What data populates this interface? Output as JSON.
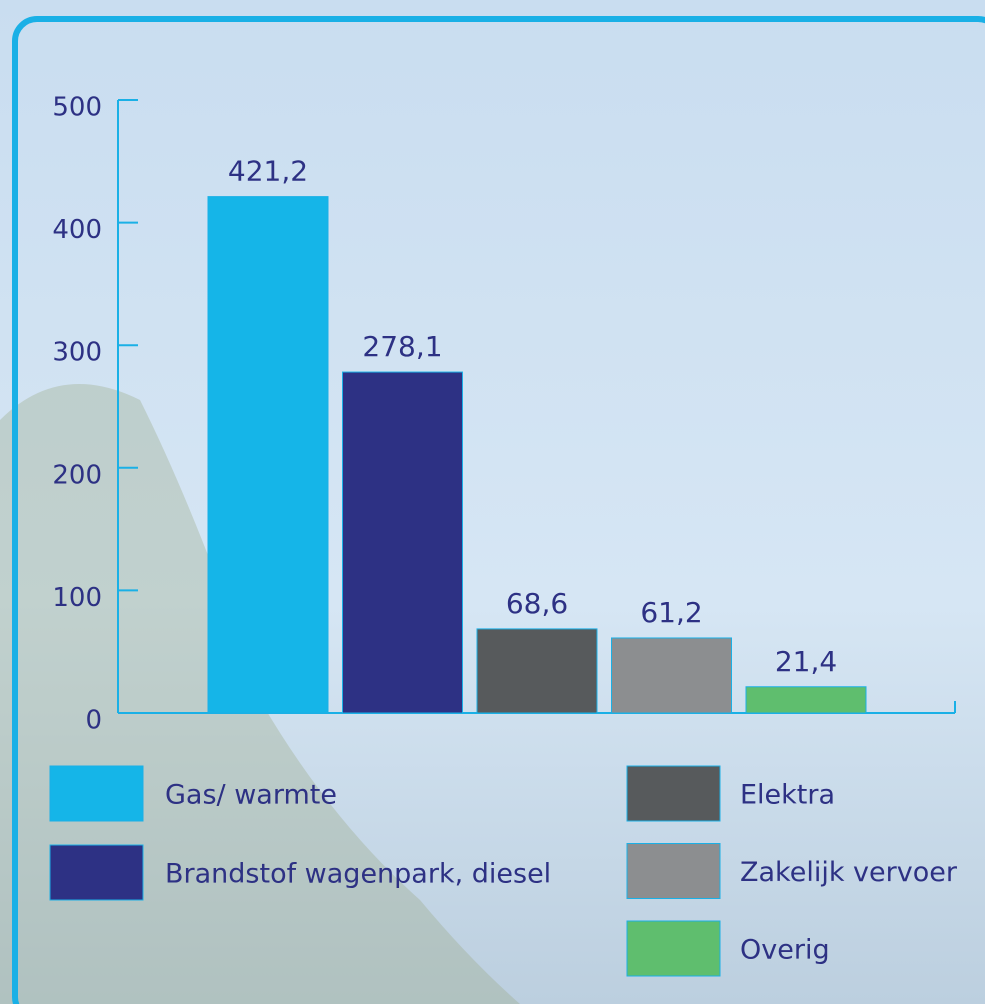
{
  "chart_data": {
    "type": "bar",
    "categories": [
      null
    ],
    "series": [
      {
        "name": "Gas/ warmte",
        "color": "#15b5e8",
        "values": [
          421.2
        ],
        "value_labels": [
          "421,2"
        ]
      },
      {
        "name": "Brandstof wagenpark, diesel",
        "color": "#2d3184",
        "values": [
          278.1
        ],
        "value_labels": [
          "278,1"
        ]
      },
      {
        "name": "Elektra",
        "color": "#575a5c",
        "values": [
          68.6
        ],
        "value_labels": [
          "68,6"
        ]
      },
      {
        "name": "Zakelijk vervoer",
        "color": "#8c8e90",
        "values": [
          61.2
        ],
        "value_labels": [
          "61,2"
        ]
      },
      {
        "name": "Overig",
        "color": "#5fbe6e",
        "values": [
          21.4
        ],
        "value_labels": [
          "21,4"
        ]
      }
    ],
    "ylim": [
      0,
      500
    ],
    "yticks": [
      0,
      100,
      200,
      300,
      400,
      500
    ],
    "grid": false
  }
}
